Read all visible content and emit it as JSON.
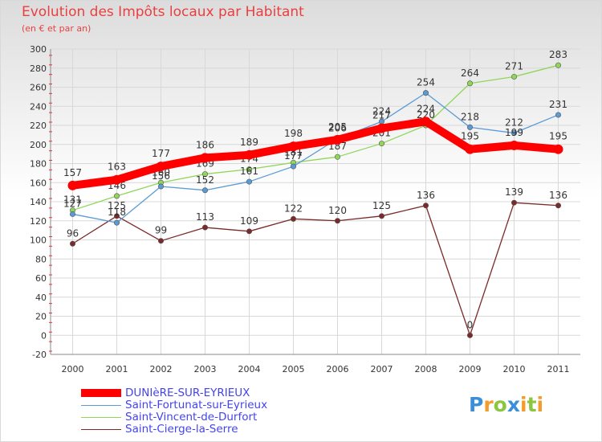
{
  "chart_data": {
    "type": "line",
    "title": "Evolution des Impôts locaux par Habitant",
    "subtitle": "(en € et par an)",
    "xlabel": "",
    "ylabel": "",
    "ylim": [
      -20,
      300
    ],
    "yticks": [
      -20,
      0,
      20,
      40,
      60,
      80,
      100,
      120,
      140,
      160,
      180,
      200,
      220,
      240,
      260,
      280,
      300
    ],
    "categories": [
      "2000",
      "2001",
      "2002",
      "2003",
      "2004",
      "2005",
      "2006",
      "2007",
      "2008",
      "2009",
      "2010",
      "2011"
    ],
    "grid": true,
    "legend_position": "bottom-left",
    "series": [
      {
        "name": "DUNIèRE-SUR-EYRIEUX",
        "color": "#ff0000",
        "emphasis": true,
        "values": [
          157,
          163,
          177,
          186,
          189,
          198,
          205,
          217,
          224,
          195,
          199,
          195
        ],
        "labels": [
          "157",
          "163",
          "177",
          "186",
          "189",
          "198",
          "205",
          "217",
          "224",
          "195",
          "199",
          "195"
        ]
      },
      {
        "name": "Saint-Fortunat-sur-Eyrieux",
        "color": "#5b9bd5",
        "values": [
          127,
          118,
          156,
          152,
          161,
          177,
          206,
          224,
          254,
          218,
          212,
          231
        ],
        "labels": [
          "127",
          "118",
          "156",
          "152",
          "161",
          "177",
          "206",
          "224",
          "254",
          "218",
          "212",
          "231"
        ]
      },
      {
        "name": "Saint-Vincent-de-Durfort",
        "color": "#8fd65a",
        "values": [
          131,
          146,
          160,
          169,
          174,
          181,
          187,
          201,
          220,
          264,
          271,
          283
        ],
        "labels": [
          "131",
          "146",
          "160",
          "169",
          "174",
          "181",
          "187",
          "201",
          "220",
          "264",
          "271",
          "283"
        ]
      },
      {
        "name": "Saint-Cierge-la-Serre",
        "color": "#7a2a2a",
        "values": [
          96,
          125,
          99,
          113,
          109,
          122,
          120,
          125,
          136,
          0,
          139,
          136
        ],
        "labels": [
          "96",
          "125",
          "99",
          "113",
          "109",
          "122",
          "120",
          "125",
          "136",
          "0",
          "139",
          "136"
        ]
      }
    ]
  },
  "brand": {
    "letters": [
      "P",
      "r",
      "o",
      "x",
      "i",
      "t",
      "i"
    ],
    "colors": [
      "#3a8fd9",
      "#f39c2b",
      "#8cc63f",
      "#3a8fd9",
      "#f39c2b",
      "#8cc63f",
      "#f39c2b"
    ]
  }
}
